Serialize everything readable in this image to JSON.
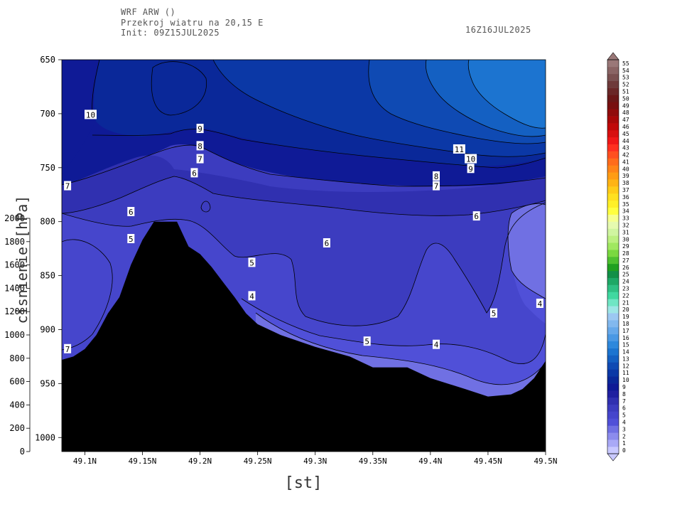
{
  "header": {
    "line1": "WRF ARW ()",
    "line2": "Przekroj wiatru na 20,15 E",
    "line3": "Init: 09Z15JUL2025",
    "valid": "16Z16JUL2025"
  },
  "chart_data": {
    "type": "contour-cross-section",
    "xlabel": "[st]",
    "ylabel": "cisnienie [hPa]",
    "x_ticks": [
      "49.1N",
      "49.15N",
      "49.2N",
      "49.25N",
      "49.3N",
      "49.35N",
      "49.4N",
      "49.45N",
      "49.5N"
    ],
    "x_tick_values": [
      49.1,
      49.15,
      49.2,
      49.25,
      49.3,
      49.35,
      49.4,
      49.45,
      49.5
    ],
    "xlim": [
      49.08,
      49.5
    ],
    "y_ticks": [
      650,
      700,
      750,
      800,
      850,
      900,
      950,
      1000
    ],
    "ylim": [
      650,
      1013
    ],
    "y2_ticks": [
      0,
      200,
      400,
      600,
      800,
      1000,
      1200,
      1400,
      1600,
      1800,
      2000
    ],
    "y2_tick_labels": [
      "0",
      "200",
      "400",
      "600",
      "800",
      "1000",
      "1200",
      "1400",
      "1600",
      "1800",
      "2000"
    ],
    "terrain": {
      "x": [
        49.08,
        49.09,
        49.1,
        49.11,
        49.12,
        49.13,
        49.14,
        49.15,
        49.16,
        49.17,
        49.18,
        49.19,
        49.2,
        49.21,
        49.22,
        49.23,
        49.24,
        49.25,
        49.27,
        49.3,
        49.33,
        49.35,
        49.38,
        49.4,
        49.43,
        49.45,
        49.47,
        49.48,
        49.49,
        49.5
      ],
      "p": [
        928,
        925,
        918,
        905,
        885,
        870,
        840,
        817,
        800,
        800,
        800,
        823,
        830,
        842,
        856,
        870,
        885,
        895,
        905,
        916,
        925,
        935,
        935,
        945,
        955,
        962,
        960,
        955,
        945,
        929
      ]
    },
    "contour_levels": [
      0,
      1,
      2,
      3,
      4,
      5,
      6,
      7,
      8,
      9,
      10,
      11,
      12,
      13,
      14,
      15,
      16,
      17,
      18,
      19,
      20,
      21,
      22,
      23,
      24,
      25,
      26,
      27,
      28,
      29,
      30,
      31,
      32,
      33,
      34,
      35,
      36,
      37,
      38,
      39,
      40,
      41,
      42,
      43,
      44,
      45,
      46,
      47,
      48,
      49,
      50,
      51,
      52,
      53,
      54,
      55
    ],
    "contour_labels": [
      {
        "x": 49.105,
        "p": 701,
        "text": "10"
      },
      {
        "x": 49.2,
        "p": 714,
        "text": "9"
      },
      {
        "x": 49.2,
        "p": 730,
        "text": "8"
      },
      {
        "x": 49.2,
        "p": 742,
        "text": "7"
      },
      {
        "x": 49.195,
        "p": 755,
        "text": "6"
      },
      {
        "x": 49.085,
        "p": 767,
        "text": "7"
      },
      {
        "x": 49.14,
        "p": 791,
        "text": "6"
      },
      {
        "x": 49.14,
        "p": 816,
        "text": "5"
      },
      {
        "x": 49.245,
        "p": 838,
        "text": "5"
      },
      {
        "x": 49.245,
        "p": 869,
        "text": "4"
      },
      {
        "x": 49.085,
        "p": 918,
        "text": "7"
      },
      {
        "x": 49.31,
        "p": 820,
        "text": "6"
      },
      {
        "x": 49.345,
        "p": 911,
        "text": "5"
      },
      {
        "x": 49.405,
        "p": 914,
        "text": "4"
      },
      {
        "x": 49.425,
        "p": 733,
        "text": "11"
      },
      {
        "x": 49.435,
        "p": 742,
        "text": "10"
      },
      {
        "x": 49.435,
        "p": 751,
        "text": "9"
      },
      {
        "x": 49.405,
        "p": 758,
        "text": "8"
      },
      {
        "x": 49.405,
        "p": 767,
        "text": "7"
      },
      {
        "x": 49.44,
        "p": 795,
        "text": "6"
      },
      {
        "x": 49.455,
        "p": 885,
        "text": "5"
      },
      {
        "x": 49.495,
        "p": 876,
        "text": "4"
      }
    ],
    "colorbar": {
      "labels": [
        "0",
        "1",
        "2",
        "3",
        "4",
        "5",
        "6",
        "7",
        "8",
        "9",
        "10",
        "11",
        "12",
        "13",
        "14",
        "15",
        "16",
        "17",
        "18",
        "19",
        "20",
        "21",
        "22",
        "23",
        "24",
        "25",
        "26",
        "27",
        "28",
        "29",
        "30",
        "31",
        "32",
        "33",
        "34",
        "35",
        "36",
        "37",
        "38",
        "39",
        "40",
        "41",
        "42",
        "43",
        "44",
        "45",
        "46",
        "47",
        "48",
        "49",
        "50",
        "51",
        "52",
        "53",
        "54",
        "55"
      ],
      "colors": [
        "#c8c8ff",
        "#a9a9f6",
        "#8c8ced",
        "#7070e3",
        "#5050d8",
        "#4646cc",
        "#3c3cbf",
        "#3030b0",
        "#2020a0",
        "#0f1a96",
        "#0a2899",
        "#0b38a6",
        "#0f4ab3",
        "#1460c2",
        "#1c74d0",
        "#2e88dc",
        "#4a98e4",
        "#66a8ea",
        "#82b8ee",
        "#9cc8f2",
        "#9ee6e6",
        "#70e6c4",
        "#40d8a0",
        "#2fc084",
        "#1ea866",
        "#129048",
        "#20a020",
        "#4ec030",
        "#7ad840",
        "#a0e860",
        "#bcf080",
        "#d0f5a0",
        "#e6fab0",
        "#f6ff90",
        "#ffff40",
        "#fff028",
        "#ffe020",
        "#ffcc18",
        "#ffb414",
        "#ff9c14",
        "#ff8418",
        "#ff6c1c",
        "#ff5020",
        "#ff3020",
        "#f01818",
        "#d81010",
        "#c00808",
        "#a80808",
        "#900c0c",
        "#781010",
        "#6a1818",
        "#6a2828",
        "#6e3a3a",
        "#7a5050",
        "#8a6464",
        "#9a7878"
      ]
    }
  }
}
